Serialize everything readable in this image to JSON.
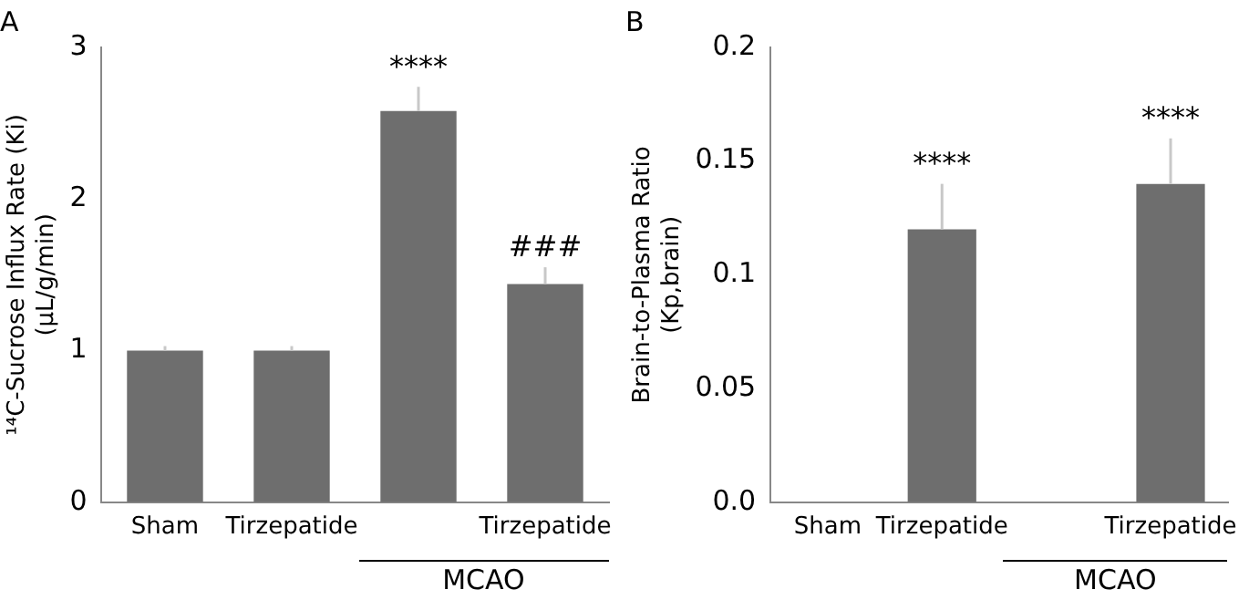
{
  "chart_data": [
    {
      "type": "bar",
      "title": "A",
      "ylabel": "¹⁴C-Sucrose Influx Rate (Ki)\n(µL/g/min)",
      "categories": [
        "Sham",
        "Tirzepatide",
        null,
        "Tirzepatide"
      ],
      "series": [
        {
          "color": "#6e6e6e",
          "values": [
            1.0,
            1.0,
            2.58,
            1.44
          ],
          "errors": [
            [
              1.0,
              1.03
            ],
            [
              1.0,
              1.03
            ],
            [
              2.58,
              2.74
            ],
            [
              1.44,
              1.55
            ]
          ],
          "value_labels": [
            null,
            null,
            "****",
            "###"
          ]
        }
      ],
      "ylim": [
        0,
        3
      ],
      "yticks": [
        0,
        1,
        2,
        3
      ],
      "grid": false,
      "legend": false,
      "annotations": [
        "MCAO"
      ]
    },
    {
      "type": "bar",
      "title": "B",
      "ylabel": "Brain-to-Plasma Ratio\n(Kp,brain)",
      "categories": [
        "Sham",
        "Tirzepatide",
        null,
        "Tirzepatide"
      ],
      "series": [
        {
          "color": "#6e6e6e",
          "values": [
            null,
            0.12,
            null,
            0.14
          ],
          "errors": [
            null,
            [
              0.12,
              0.14
            ],
            null,
            [
              0.14,
              0.16
            ]
          ],
          "value_labels": [
            null,
            "****",
            null,
            "****"
          ]
        }
      ],
      "ylim": [
        0,
        0.2
      ],
      "yticks": [
        {
          "value": 0,
          "label": "0.0"
        },
        0.05,
        0.1,
        0.15,
        0.2
      ],
      "grid": false,
      "legend": false,
      "annotations": [
        "MCAO"
      ]
    }
  ]
}
